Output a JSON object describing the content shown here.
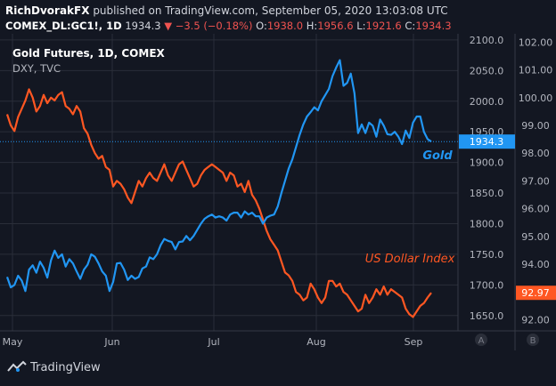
{
  "header": {
    "author": "RichDvorakFX",
    "published_text": "published on TradingView.com, September 05, 2020 13:03:08 UTC",
    "symbol": "COMEX_DL:GC1!, 1D",
    "last": "1934.3",
    "change": "−3.5 (−0.18%)",
    "o_label": "O:",
    "o_val": "1938.0",
    "h_label": "H:",
    "h_val": "1956.6",
    "l_label": "L:",
    "l_val": "1921.6",
    "c_label": "C:",
    "c_val": "1934.3"
  },
  "legend": {
    "main": "Gold Futures, 1D, COMEX",
    "secondary": "DXY, TVC"
  },
  "footer": {
    "logo_text": "TradingView",
    "btn_a": "A",
    "btn_b": "B"
  },
  "colors": {
    "background": "#131722",
    "gold": "#2196f3",
    "dxy": "#ff5722",
    "grid": "#2a2e39",
    "axis_text": "#b2b5be"
  },
  "chart_data": {
    "type": "line",
    "x_tick_labels": [
      "May",
      "Jun",
      "Jul",
      "Aug",
      "Sep"
    ],
    "gold_axis": {
      "ticks": [
        "2100.0",
        "2050.0",
        "2000.0",
        "1950.0",
        "1900.0",
        "1850.0",
        "1800.0",
        "1750.0",
        "1700.0",
        "1650.0"
      ],
      "ylim": [
        1625,
        2110
      ]
    },
    "dxy_axis": {
      "ticks": [
        "102.00",
        "101.00",
        "100.00",
        "99.00",
        "98.00",
        "97.00",
        "96.00",
        "95.00",
        "94.00",
        "93.00",
        "92.00"
      ],
      "ylim": [
        91.6,
        102.3
      ]
    },
    "series": [
      {
        "name": "Gold",
        "axis": "left",
        "color": "#2196f3",
        "last_label": "1934.3",
        "values": [
          1713,
          1696,
          1700,
          1715,
          1707,
          1690,
          1725,
          1732,
          1720,
          1738,
          1728,
          1712,
          1740,
          1756,
          1744,
          1750,
          1730,
          1742,
          1735,
          1722,
          1710,
          1725,
          1733,
          1750,
          1746,
          1735,
          1722,
          1715,
          1690,
          1705,
          1735,
          1736,
          1725,
          1708,
          1715,
          1710,
          1713,
          1727,
          1730,
          1745,
          1742,
          1750,
          1765,
          1775,
          1772,
          1770,
          1758,
          1770,
          1771,
          1780,
          1773,
          1780,
          1790,
          1800,
          1808,
          1812,
          1815,
          1810,
          1812,
          1810,
          1805,
          1815,
          1818,
          1818,
          1810,
          1820,
          1815,
          1818,
          1812,
          1812,
          1800,
          1810,
          1813,
          1815,
          1828,
          1850,
          1870,
          1890,
          1905,
          1925,
          1945,
          1962,
          1975,
          1982,
          1990,
          1985,
          2000,
          2010,
          2020,
          2041,
          2055,
          2067,
          2025,
          2030,
          2045,
          2013,
          1948,
          1962,
          1948,
          1965,
          1960,
          1942,
          1970,
          1960,
          1946,
          1945,
          1950,
          1942,
          1930,
          1952,
          1940,
          1965,
          1975,
          1975,
          1950,
          1938,
          1934
        ],
        "annotation": "Gold"
      },
      {
        "name": "US Dollar Index",
        "axis": "right",
        "color": "#ff5722",
        "last_label": "92.97",
        "values": [
          99.4,
          99.0,
          98.8,
          99.3,
          99.6,
          99.9,
          100.3,
          100.0,
          99.5,
          99.7,
          100.1,
          99.8,
          100.0,
          99.9,
          100.1,
          100.2,
          99.7,
          99.6,
          99.4,
          99.7,
          99.5,
          98.9,
          98.7,
          98.3,
          98.0,
          97.8,
          97.9,
          97.5,
          97.4,
          96.8,
          97.0,
          96.9,
          96.7,
          96.4,
          96.2,
          96.6,
          97.0,
          96.8,
          97.1,
          97.3,
          97.1,
          97.0,
          97.3,
          97.6,
          97.2,
          97.0,
          97.3,
          97.6,
          97.7,
          97.4,
          97.1,
          96.8,
          96.9,
          97.2,
          97.4,
          97.5,
          97.6,
          97.5,
          97.4,
          97.3,
          97.0,
          97.3,
          97.2,
          96.8,
          96.9,
          96.6,
          97.0,
          96.5,
          96.3,
          96.0,
          95.6,
          95.2,
          94.9,
          94.7,
          94.5,
          94.1,
          93.7,
          93.6,
          93.4,
          93.0,
          92.9,
          92.7,
          92.8,
          93.3,
          93.1,
          92.8,
          92.6,
          92.8,
          93.4,
          93.4,
          93.2,
          93.3,
          93.0,
          92.9,
          92.7,
          92.5,
          92.3,
          92.4,
          92.9,
          92.6,
          92.8,
          93.1,
          92.9,
          93.2,
          92.9,
          93.1,
          93.0,
          92.9,
          92.8,
          92.4,
          92.2,
          92.1,
          92.3,
          92.5,
          92.6,
          92.8,
          92.97
        ],
        "annotation": "US Dollar Index"
      }
    ]
  }
}
